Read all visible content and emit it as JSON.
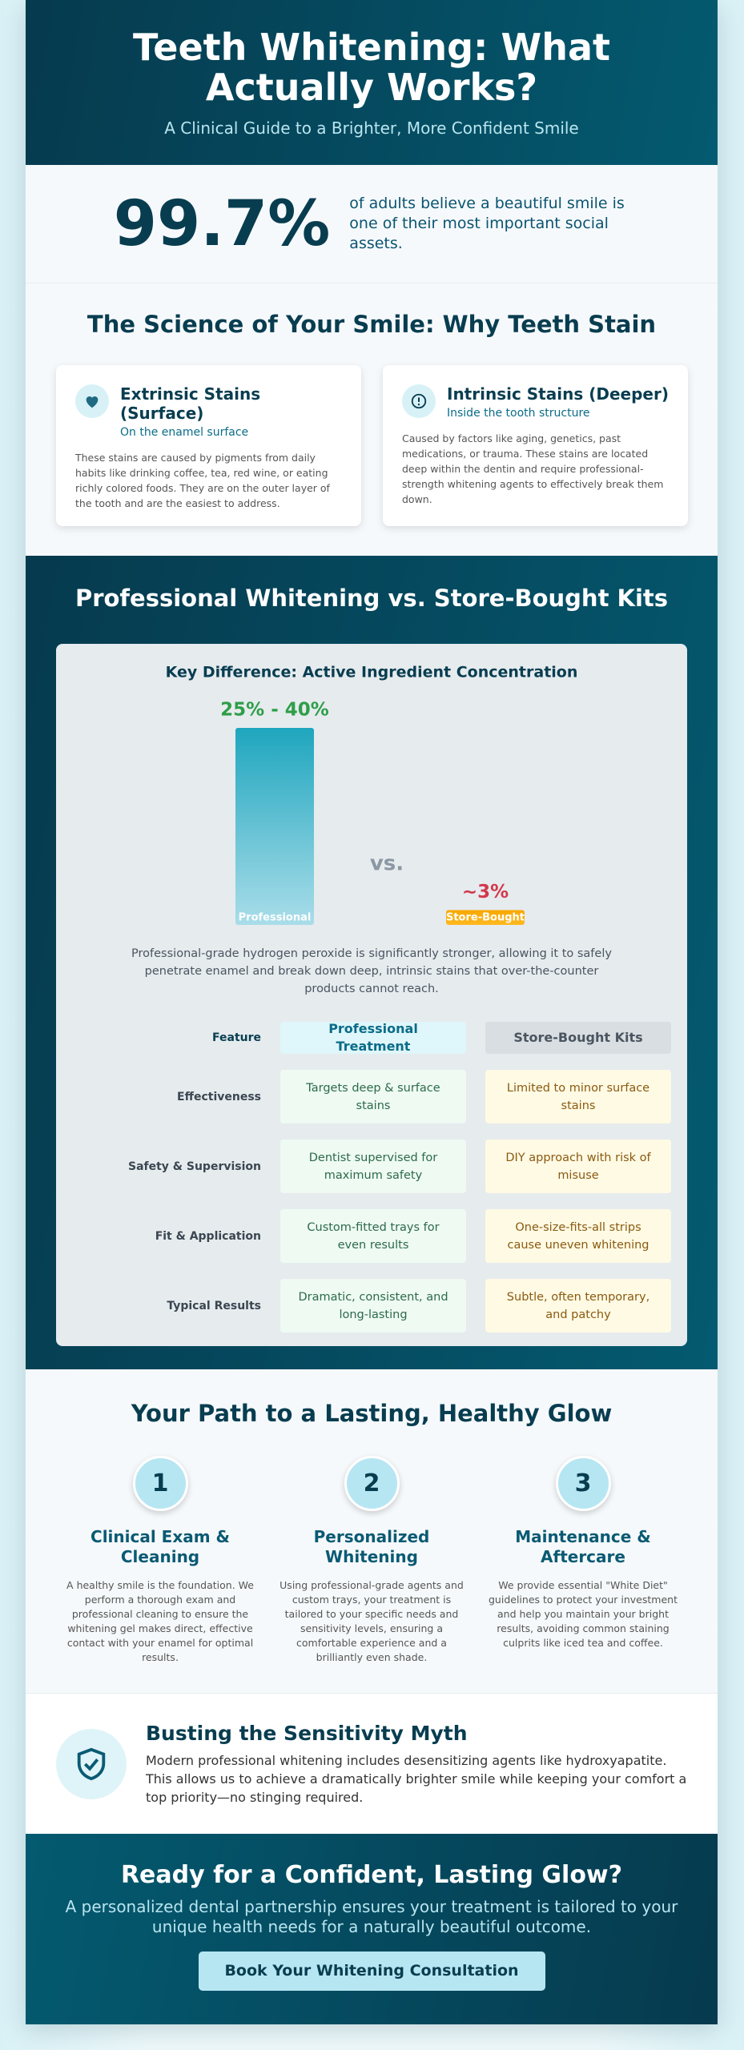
{
  "header": {
    "title": "Teeth Whitening: What Actually Works?",
    "subtitle": "A Clinical Guide to a Brighter, More Confident Smile"
  },
  "stat": {
    "value": "99.7%",
    "text": "of adults believe a beautiful smile is one of their most important social assets."
  },
  "science": {
    "heading": "The Science of Your Smile: Why Teeth Stain",
    "cards": [
      {
        "title": "Extrinsic Stains (Surface)",
        "subtitle": "On the enamel surface",
        "text": "These stains are caused by pigments from daily habits like drinking coffee, tea, red wine, or eating richly colored foods. They are on the outer layer of the tooth and are the easiest to address."
      },
      {
        "title": "Intrinsic Stains (Deeper)",
        "subtitle": "Inside the tooth structure",
        "text": "Caused by factors like aging, genetics, past medications, or trauma. These stains are located deep within the dentin and require professional-strength whitening agents to effectively break them down."
      }
    ]
  },
  "comparison": {
    "heading": "Professional Whitening vs. Store-Bought Kits",
    "vs": "vs.",
    "note": "Professional-grade hydrogen peroxide is significantly stronger, allowing it to safely penetrate enamel and break down deep, intrinsic stains that over-the-counter products cannot reach.",
    "table": {
      "header": [
        "Feature",
        "Professional Treatment",
        "Store-Bought Kits"
      ],
      "rows": [
        [
          "Effectiveness",
          "Targets deep & surface stains",
          "Limited to minor surface stains"
        ],
        [
          "Safety & Supervision",
          "Dentist supervised for maximum safety",
          "DIY approach with risk of misuse"
        ],
        [
          "Fit & Application",
          "Custom-fitted trays for even results",
          "One-size-fits-all strips cause uneven whitening"
        ],
        [
          "Typical Results",
          "Dramatic, consistent, and long-lasting",
          "Subtle, often temporary, and patchy"
        ]
      ]
    }
  },
  "chart_data": {
    "type": "bar",
    "title": "Key Difference: Active Ingredient Concentration",
    "categories": [
      "Professional",
      "Store-Bought"
    ],
    "values": [
      40,
      3
    ],
    "value_labels": [
      "25% - 40%",
      "~3%"
    ],
    "colors": [
      "#1fa6be",
      "#f7a800"
    ],
    "label_colors": [
      "#2e9e48",
      "#d3384c"
    ],
    "ylim": [
      0,
      40
    ]
  },
  "path": {
    "heading": "Your Path to a Lasting, Healthy Glow",
    "steps": [
      {
        "number": "1",
        "title": "Clinical Exam & Cleaning",
        "text": "A healthy smile is the foundation. We perform a thorough exam and professional cleaning to ensure the whitening gel makes direct, effective contact with your enamel for optimal results."
      },
      {
        "number": "2",
        "title": "Personalized Whitening",
        "text": "Using professional-grade agents and custom trays, your treatment is tailored to your specific needs and sensitivity levels, ensuring a comfortable experience and a brilliantly even shade."
      },
      {
        "number": "3",
        "title": "Maintenance & Aftercare",
        "text": "We provide essential \"White Diet\" guidelines to protect your investment and help you maintain your bright results, avoiding common staining culprits like iced tea and coffee."
      }
    ]
  },
  "myth": {
    "title": "Busting the Sensitivity Myth",
    "text": "Modern professional whitening includes desensitizing agents like hydroxyapatite. This allows us to achieve a dramatically brighter smile while keeping your comfort a top priority—no stinging required."
  },
  "cta": {
    "title": "Ready for a Confident, Lasting Glow?",
    "text": "A personalized dental partnership ensures your treatment is tailored to your unique health needs for a naturally beautiful outcome.",
    "button": "Book Your Whitening Consultation"
  }
}
